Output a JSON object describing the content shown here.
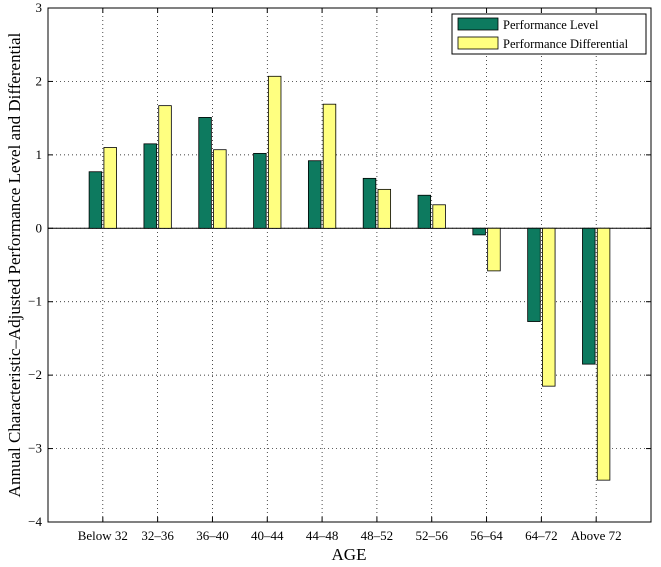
{
  "chart_data": {
    "type": "bar",
    "xlabel": "AGE",
    "ylabel": "Annual Characteristic–Adjusted Performance Level and Differential",
    "categories": [
      "Below 32",
      "32–36",
      "36–40",
      "40–44",
      "44–48",
      "48–52",
      "52–56",
      "56–64",
      "64–72",
      "Above 72"
    ],
    "series": [
      {
        "name": "Performance Level",
        "color": "#0d7a5f",
        "values": [
          0.77,
          1.15,
          1.51,
          1.02,
          0.92,
          0.68,
          0.45,
          -0.09,
          -1.27,
          -1.85
        ]
      },
      {
        "name": "Performance Differential",
        "color": "#ffff80",
        "values": [
          1.1,
          1.67,
          1.07,
          2.07,
          1.69,
          0.53,
          0.32,
          -0.58,
          -2.15,
          -3.43
        ]
      }
    ],
    "ylim": [
      -4,
      3
    ],
    "yticks": [
      -4,
      -3,
      -2,
      -1,
      0,
      1,
      2,
      3
    ],
    "yticklabels": [
      "−4",
      "−3",
      "−2",
      "−1",
      "0",
      "1",
      "2",
      "3"
    ],
    "xlim": [
      0,
      11
    ],
    "grid": true,
    "legend_position": "top-right"
  }
}
